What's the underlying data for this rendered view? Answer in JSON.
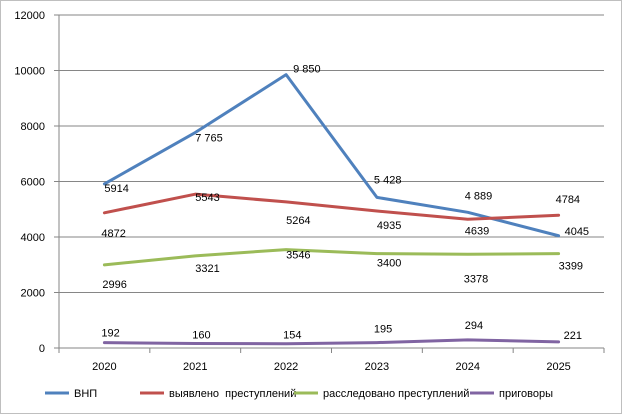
{
  "chart_data": {
    "type": "line",
    "title": "",
    "xlabel": "",
    "ylabel": "",
    "categories": [
      "2020",
      "2021",
      "2022",
      "2023",
      "2024",
      "2025"
    ],
    "ylim": [
      0,
      12000
    ],
    "yticks": [
      0,
      2000,
      4000,
      6000,
      8000,
      10000,
      12000
    ],
    "ytick_labels": [
      "0",
      "2000",
      "4000",
      "6000",
      "8000",
      "10000",
      "12000"
    ],
    "grid": true,
    "legend_position": "bottom",
    "series": [
      {
        "name": "ВНП",
        "color": "#4f81bd",
        "values": [
          5914,
          7765,
          9850,
          5428,
          4889,
          4045
        ],
        "labels": [
          "5914",
          "7 765",
          "9 850",
          "5 428",
          "4 889",
          "4045"
        ]
      },
      {
        "name": "выявлено  преступлений",
        "color": "#c0504d",
        "values": [
          4872,
          5543,
          5264,
          4935,
          4639,
          4784
        ],
        "labels": [
          "4872",
          "5543",
          "5264",
          "4935",
          "4639",
          "4784"
        ]
      },
      {
        "name": "расследовано преступлений",
        "color": "#9bbb59",
        "values": [
          2996,
          3321,
          3546,
          3400,
          3378,
          3399
        ],
        "labels": [
          "2996",
          "3321",
          "3546",
          "3400",
          "3378",
          "3399"
        ]
      },
      {
        "name": "приговоры",
        "color": "#8064a2",
        "values": [
          192,
          160,
          154,
          195,
          294,
          221
        ],
        "labels": [
          "192",
          "160",
          "154",
          "195",
          "294",
          "221"
        ]
      }
    ]
  }
}
